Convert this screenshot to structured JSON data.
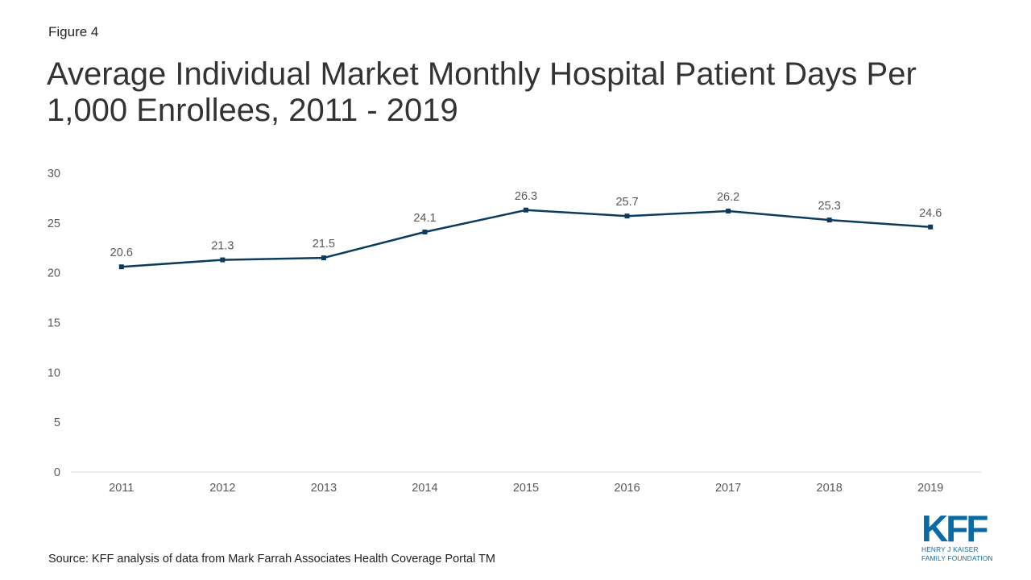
{
  "figure_label": "Figure 4",
  "source": "Source: KFF analysis of data from Mark Farrah Associates Health Coverage Portal TM",
  "logo": {
    "mark": "KFF",
    "line1": "HENRY J KAISER",
    "line2": "FAMILY FOUNDATION"
  },
  "colors": {
    "series": "#0d3b5e",
    "gridline": "#d9d9d9",
    "tick_text": "#595959"
  },
  "chart_data": {
    "type": "line",
    "title": "Average Individual Market Monthly Hospital Patient Days Per 1,000 Enrollees, 2011 - 2019",
    "xlabel": "",
    "ylabel": "",
    "categories": [
      "2011",
      "2012",
      "2013",
      "2014",
      "2015",
      "2016",
      "2017",
      "2018",
      "2019"
    ],
    "values": [
      20.6,
      21.3,
      21.5,
      24.1,
      26.3,
      25.7,
      26.2,
      25.3,
      24.6
    ],
    "data_labels": [
      "20.6",
      "21.3",
      "21.5",
      "24.1",
      "26.3",
      "25.7",
      "26.2",
      "25.3",
      "24.6"
    ],
    "ylim": [
      0,
      30
    ],
    "yticks": [
      "0",
      "5",
      "10",
      "15",
      "20",
      "25",
      "30"
    ],
    "grid": false,
    "legend": "none",
    "marker": "square"
  }
}
